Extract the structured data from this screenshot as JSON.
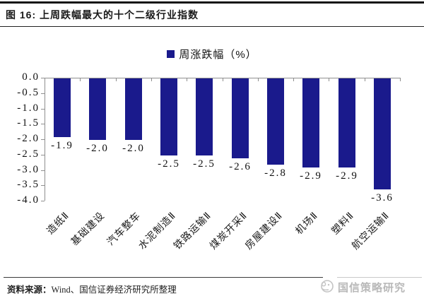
{
  "figure": {
    "title": "图 16: 上周跌幅最大的十个二级行业指数",
    "source_label": "资料来源：",
    "source_text": "Wind、国信证券经济研究所整理",
    "watermark_text": "国信策略研究"
  },
  "chart_data": {
    "type": "bar",
    "title": "",
    "legend": [
      "周涨跌幅（%）"
    ],
    "legend_position": "top-center",
    "categories": [
      "造纸Ⅱ",
      "基础建设",
      "汽车整车",
      "水泥制造Ⅱ",
      "铁路运输Ⅱ",
      "煤炭开采Ⅱ",
      "房屋建设Ⅱ",
      "机场Ⅱ",
      "塑料Ⅱ",
      "航空运输Ⅱ"
    ],
    "values": [
      -1.9,
      -2.0,
      -2.0,
      -2.5,
      -2.5,
      -2.6,
      -2.8,
      -2.9,
      -2.9,
      -3.6
    ],
    "data_labels": [
      "-1.9",
      "-2.0",
      "-2.0",
      "-2.5",
      "-2.5",
      "-2.6",
      "-2.8",
      "-2.9",
      "-2.9",
      "-3.6"
    ],
    "ylim": [
      -4.0,
      0.0
    ],
    "y_tick_labels": [
      "0.0",
      "-0.5",
      "-1.0",
      "-1.5",
      "-2.0",
      "-2.5",
      "-3.0",
      "-3.5",
      "-4.0"
    ],
    "grid": false,
    "bar_color": "#1a1a8c",
    "axis_color": "#8f8f8f"
  }
}
